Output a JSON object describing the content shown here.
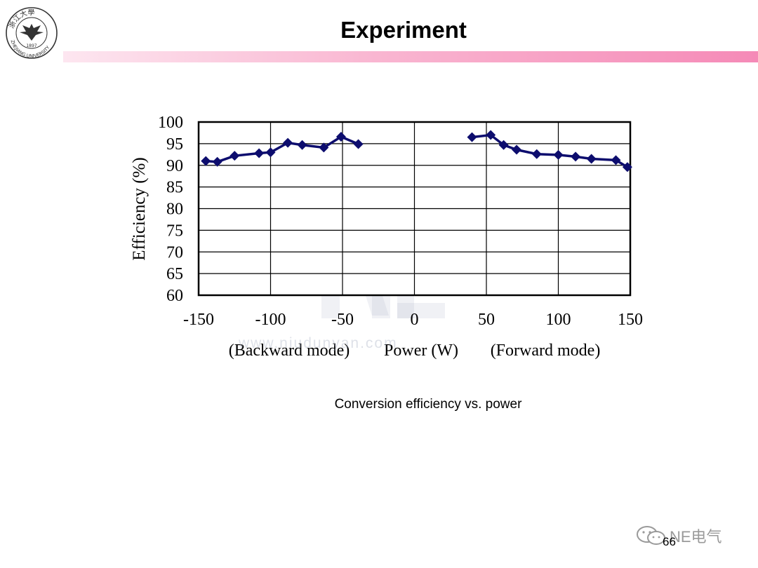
{
  "header": {
    "title": "Experiment",
    "logo": {
      "top_text": "浙江大學",
      "year": "1897",
      "bottom_text": "ZHEJIANG UNIVERSITY"
    },
    "accent_color": "#f58ab7"
  },
  "chart_data": {
    "type": "line",
    "title": "",
    "ylabel": "Efficiency (%)",
    "xlabel": "Power (W)",
    "xlabel_left": "(Backward mode)",
    "xlabel_right": "(Forward mode)",
    "xlim": [
      -150,
      150
    ],
    "ylim": [
      60,
      100
    ],
    "xticks": [
      -150,
      -100,
      -50,
      0,
      50,
      100,
      150
    ],
    "yticks": [
      60,
      65,
      70,
      75,
      80,
      85,
      90,
      95,
      100
    ],
    "grid": true,
    "series_color": "#0d0d6e",
    "series": [
      {
        "name": "Backward mode",
        "x": [
          -145,
          -137,
          -125,
          -108,
          -100,
          -88,
          -78,
          -63,
          -51,
          -39
        ],
        "y": [
          91.0,
          90.8,
          92.2,
          92.8,
          93.0,
          95.2,
          94.7,
          94.1,
          96.6,
          94.9
        ]
      },
      {
        "name": "Forward mode",
        "x": [
          40,
          53,
          62,
          71,
          85,
          100,
          112,
          123,
          140,
          148
        ],
        "y": [
          96.5,
          97.0,
          94.7,
          93.6,
          92.6,
          92.4,
          92.0,
          91.5,
          91.2,
          89.6
        ]
      }
    ]
  },
  "watermark": {
    "text": "www.niudunyan.com"
  },
  "caption": "Conversion efficiency vs. power",
  "footer": {
    "brand": "NE电气",
    "page_number": "66"
  }
}
